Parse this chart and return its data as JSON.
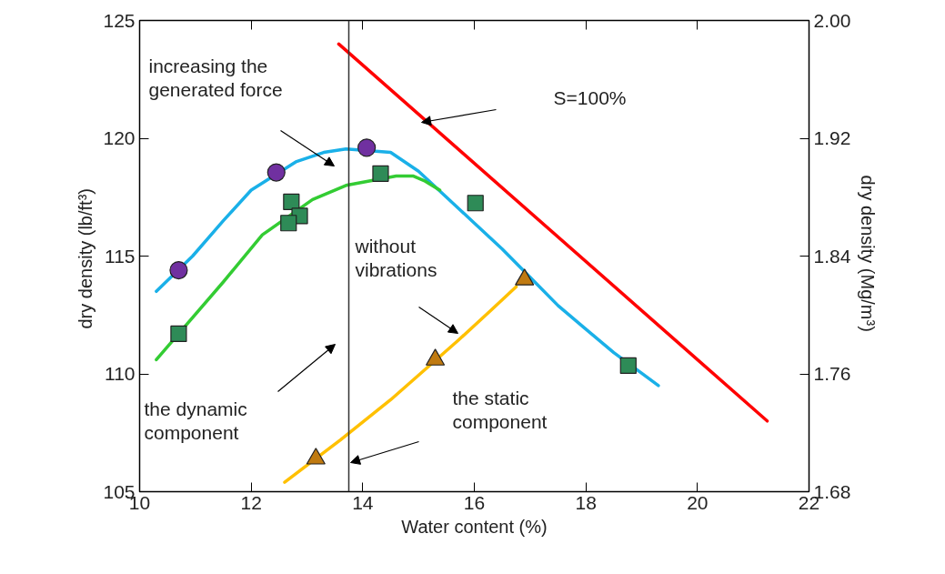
{
  "chart_data": {
    "type": "line",
    "xlabel": "Water content (%)",
    "ylabel": "dry density  (lb/ft³)",
    "y2label": "dry density  (Mg/m³)",
    "xlim": [
      10,
      22
    ],
    "xticks": [
      10,
      12,
      14,
      16,
      18,
      20,
      22
    ],
    "ylim": [
      105,
      125
    ],
    "yticks": [
      105,
      110,
      115,
      120,
      125
    ],
    "y2lim": [
      1.68,
      2.0
    ],
    "y2ticks": [
      1.68,
      1.76,
      1.84,
      1.92,
      {
        "value": 2.0,
        "label": "2.00"
      }
    ],
    "grid": false,
    "line_style": "solid",
    "series": [
      {
        "color": "#ff0000",
        "x": [
          13.57,
          21.25
        ],
        "values": [
          124.0,
          108.0
        ]
      },
      {
        "color": "#1ab0e8",
        "x": [
          10.3,
          10.95,
          11.5,
          12.0,
          12.8,
          13.3,
          13.7,
          14.5,
          15.0,
          15.5,
          16.0,
          16.5,
          17.0,
          17.5,
          18.0,
          18.5,
          19.3
        ],
        "values": [
          113.5,
          115.0,
          116.5,
          117.8,
          119.0,
          119.4,
          119.55,
          119.4,
          118.6,
          117.5,
          116.4,
          115.3,
          114.1,
          112.9,
          111.9,
          110.9,
          109.5
        ]
      },
      {
        "color": "#33cc33",
        "x": [
          10.3,
          10.7,
          11.5,
          12.2,
          13.1,
          13.7,
          14.6,
          14.9,
          15.1,
          15.38
        ],
        "values": [
          110.6,
          111.7,
          113.9,
          115.9,
          117.4,
          118.0,
          118.4,
          118.4,
          118.2,
          117.8
        ]
      },
      {
        "color": "#ffc000",
        "x": [
          12.6,
          13.6,
          14.5,
          15.7,
          16.3,
          16.75
        ],
        "values": [
          105.4,
          107.2,
          108.9,
          111.4,
          112.7,
          113.7
        ]
      },
      {
        "type": "scatter",
        "marker": "circle",
        "color": "#7030a0",
        "x": [
          10.7,
          12.45,
          14.07
        ],
        "values": [
          114.4,
          118.55,
          119.6
        ]
      },
      {
        "type": "scatter",
        "marker": "square",
        "color": "#2e8b57",
        "x": [
          10.7,
          12.72,
          12.87,
          12.67,
          14.32,
          16.02,
          18.76
        ],
        "values": [
          111.7,
          117.3,
          116.7,
          116.4,
          118.5,
          117.25,
          110.35
        ]
      },
      {
        "type": "scatter",
        "marker": "triangle",
        "color": "#c07a10",
        "x": [
          13.16,
          15.3,
          16.9
        ],
        "values": [
          106.4,
          110.6,
          114.0
        ]
      }
    ],
    "ref_lines": [
      {
        "axis": "x",
        "value": 13.75,
        "label": null,
        "color": "#333333"
      }
    ],
    "annotations": [
      "increasing the\ngenerated force",
      "S=100%",
      "without\nvibrations",
      "the dynamic\ncomponent",
      "the static\ncomponent"
    ]
  }
}
